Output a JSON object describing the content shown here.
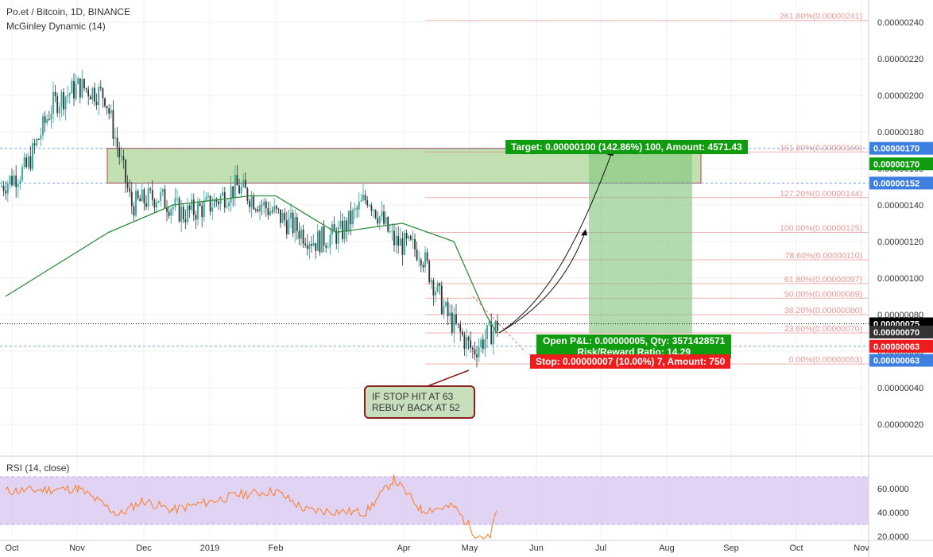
{
  "header": {
    "symbol_line": "Po.et / Bitcoin, 1D, BINANCE",
    "indicator": "McGinley Dynamic (14)",
    "rsi_label": "RSI (14, close)"
  },
  "price_axis": {
    "ticks": [
      "0.00000240",
      "0.00000220",
      "0.00000200",
      "0.00000180",
      "0.00000160",
      "0.00000140",
      "0.00000120",
      "0.00000100",
      "0.00000080",
      "0.00000060",
      "0.00000040",
      "0.00000020"
    ],
    "tick_values": [
      240,
      220,
      200,
      180,
      160,
      140,
      120,
      100,
      80,
      60,
      40,
      20
    ],
    "labels": [
      {
        "text": "0.00000170",
        "value": 171,
        "color": "#3d7fe0"
      },
      {
        "text": "0.00000170",
        "value": 162.5,
        "color": "#0f9d0f"
      },
      {
        "text": "0.00000152",
        "value": 152,
        "color": "#3d7fe0"
      },
      {
        "text": "0.00000075",
        "value": 75,
        "color": "#000000"
      },
      {
        "text": "0.00000070",
        "value": 70.5,
        "color": "#333333"
      },
      {
        "text": "0.00000063",
        "value": 62.7,
        "color": "#ee1c1c"
      },
      {
        "text": "0.00000063",
        "value": 55,
        "color": "#3d7fe0"
      }
    ]
  },
  "rsi_axis": {
    "ticks": [
      "60.0000",
      "40.0000",
      "20.0000"
    ],
    "tick_values": [
      60,
      40,
      20
    ]
  },
  "time_axis": {
    "labels": [
      "Oct",
      "Nov",
      "Dec",
      "2019",
      "Feb",
      "Apr",
      "May",
      "Jun",
      "Jul",
      "Aug",
      "Sep",
      "Oct",
      "Nov"
    ],
    "positions": [
      15,
      97,
      181,
      264,
      347,
      508,
      591,
      675,
      756,
      839,
      920,
      1002,
      1084
    ]
  },
  "fib_levels": [
    {
      "text": "261.80%(0.00000241)",
      "value": 241
    },
    {
      "text": "161.80%(0.00000169)",
      "value": 169
    },
    {
      "text": "127.20%(0.00000144)",
      "value": 144
    },
    {
      "text": "100.00%(0.00000125)",
      "value": 125
    },
    {
      "text": "78.60%(0.00000110)",
      "value": 110
    },
    {
      "text": "61.80%(0.00000097)",
      "value": 97
    },
    {
      "text": "50.00%(0.00000089)",
      "value": 89
    },
    {
      "text": "38.20%(0.00000080)",
      "value": 80
    },
    {
      "text": "23.60%(0.00000070)",
      "value": 70
    },
    {
      "text": "0.00%(0.00000053)",
      "value": 53
    }
  ],
  "position": {
    "target_label": "Target: 0.00000100 (142.86%) 100, Amount: 4571.43",
    "pl_line1": "Open P&L: 0.00000005, Qty: 3571428571",
    "pl_line2": "Risk/Reward Ratio: 14.29",
    "stop_label": "Stop: 0.00000007 (10.00%) 7, Amount: 750"
  },
  "annotation": {
    "line1": "IF STOP HIT AT 63",
    "line2": "REBUY BACK AT 52"
  },
  "colors": {
    "up": "#26a69a",
    "down": "#333333",
    "mcginley": "#2e8b3a",
    "rsi": "#ff7b1f",
    "rsi_band": "#d9c8f0",
    "zone": "#b9dba5",
    "target_green": "#0f9d0f",
    "stop_red": "#ee1c1c",
    "fib_red": "#e57373"
  },
  "chart_data": {
    "type": "candlestick",
    "title": "Po.et / Bitcoin, 1D, BINANCE",
    "units": "BTC",
    "approx_close_path": [
      {
        "date": "2018-09-28",
        "close": 1.5e-06
      },
      {
        "date": "2018-10-15",
        "close": 1.6e-06
      },
      {
        "date": "2018-10-25",
        "close": 1.95e-06
      },
      {
        "date": "2018-11-01",
        "close": 2.05e-06
      },
      {
        "date": "2018-11-10",
        "close": 2e-06
      },
      {
        "date": "2018-11-20",
        "close": 1.4e-06
      },
      {
        "date": "2018-12-01",
        "close": 1.45e-06
      },
      {
        "date": "2018-12-15",
        "close": 1.35e-06
      },
      {
        "date": "2019-01-01",
        "close": 1.4e-06
      },
      {
        "date": "2019-01-15",
        "close": 1.5e-06
      },
      {
        "date": "2019-02-01",
        "close": 1.4e-06
      },
      {
        "date": "2019-02-15",
        "close": 1.3e-06
      },
      {
        "date": "2019-03-01",
        "close": 1.2e-06
      },
      {
        "date": "2019-03-15",
        "close": 1.25e-06
      },
      {
        "date": "2019-03-28",
        "close": 1.45e-06
      },
      {
        "date": "2019-04-10",
        "close": 1.2e-06
      },
      {
        "date": "2019-04-25",
        "close": 1.15e-06
      },
      {
        "date": "2019-05-05",
        "close": 8e-07
      },
      {
        "date": "2019-05-12",
        "close": 6e-07
      },
      {
        "date": "2019-05-15",
        "close": 7.5e-07
      }
    ],
    "mcginley_path": [
      {
        "date": "2018-09-28",
        "value": 9e-07
      },
      {
        "date": "2018-11-15",
        "value": 1.25e-06
      },
      {
        "date": "2018-12-15",
        "value": 1.4e-06
      },
      {
        "date": "2019-01-20",
        "value": 1.45e-06
      },
      {
        "date": "2019-02-01",
        "value": 1.45e-06
      },
      {
        "date": "2019-03-01",
        "value": 1.25e-06
      },
      {
        "date": "2019-04-01",
        "value": 1.3e-06
      },
      {
        "date": "2019-04-25",
        "value": 1.2e-06
      },
      {
        "date": "2019-05-10",
        "value": 8e-07
      },
      {
        "date": "2019-05-15",
        "value": 7e-07
      }
    ],
    "rsi_path": [
      {
        "date": "2018-09-28",
        "value": 58
      },
      {
        "date": "2018-11-01",
        "value": 60
      },
      {
        "date": "2018-11-20",
        "value": 38
      },
      {
        "date": "2018-12-01",
        "value": 50
      },
      {
        "date": "2018-12-15",
        "value": 42
      },
      {
        "date": "2019-01-15",
        "value": 55
      },
      {
        "date": "2019-02-01",
        "value": 58
      },
      {
        "date": "2019-02-15",
        "value": 42
      },
      {
        "date": "2019-03-15",
        "value": 40
      },
      {
        "date": "2019-03-28",
        "value": 68
      },
      {
        "date": "2019-04-10",
        "value": 42
      },
      {
        "date": "2019-04-25",
        "value": 45
      },
      {
        "date": "2019-05-05",
        "value": 22
      },
      {
        "date": "2019-05-12",
        "value": 18
      },
      {
        "date": "2019-05-15",
        "value": 45
      }
    ],
    "resistance_zone": [
      1.52e-06,
      1.71e-06
    ],
    "entry": 7e-07,
    "target": 1.7e-06,
    "stop": 6.3e-07,
    "last_price": 7.5e-07,
    "ylim": [
      2e-08,
      2.5e-06
    ],
    "rsi_ylim": [
      10,
      75
    ]
  }
}
